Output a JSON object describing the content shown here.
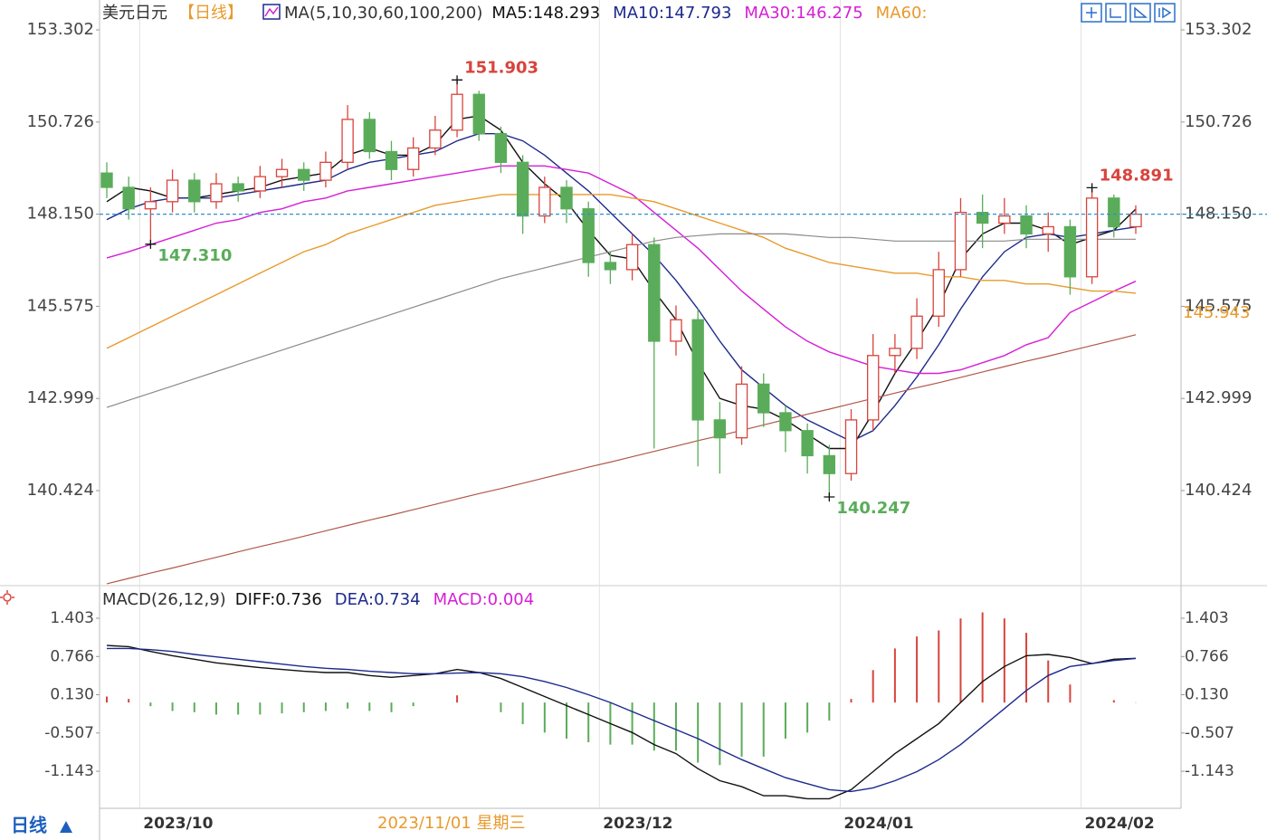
{
  "chart_data": [
    {
      "type": "candlestick",
      "title": "美元日元",
      "period": "【日线】",
      "indicator": "MA(5,10,30,60,100,200)",
      "categories": [
        null,
        null,
        "2023/10",
        null,
        null,
        null,
        null,
        null,
        null,
        null,
        null,
        null,
        null,
        null,
        null,
        null,
        null,
        null,
        null,
        null,
        null,
        null,
        null,
        "2023/12",
        null,
        null,
        null,
        null,
        null,
        null,
        null,
        null,
        null,
        null,
        "2024/01",
        null,
        null,
        null,
        null,
        null,
        null,
        null,
        null,
        null,
        null,
        "2024/02",
        null,
        null
      ],
      "open": [
        149.3,
        148.9,
        148.3,
        148.5,
        149.1,
        148.5,
        149.0,
        148.8,
        149.2,
        149.4,
        149.1,
        149.6,
        150.8,
        149.9,
        149.4,
        150.0,
        150.5,
        151.5,
        150.4,
        149.6,
        148.1,
        148.9,
        148.3,
        146.8,
        146.6,
        147.3,
        144.6,
        145.2,
        142.4,
        141.9,
        143.4,
        142.6,
        142.1,
        141.4,
        140.9,
        142.4,
        144.2,
        144.4,
        145.3,
        146.6,
        148.2,
        147.9,
        148.1,
        147.6,
        147.8,
        146.4,
        148.6,
        147.8
      ],
      "close": [
        148.9,
        148.3,
        148.5,
        149.1,
        148.5,
        149.0,
        148.8,
        149.2,
        149.4,
        149.1,
        149.6,
        150.8,
        149.9,
        149.4,
        150.0,
        150.5,
        151.5,
        150.4,
        149.6,
        148.1,
        148.9,
        148.3,
        146.8,
        146.6,
        147.3,
        144.6,
        145.2,
        142.4,
        141.9,
        143.4,
        142.6,
        142.1,
        141.4,
        140.9,
        142.4,
        144.2,
        144.4,
        145.3,
        146.6,
        148.2,
        147.9,
        148.1,
        147.6,
        147.8,
        146.4,
        148.6,
        147.8,
        148.15
      ],
      "high": [
        149.6,
        149.2,
        148.9,
        149.4,
        149.3,
        149.3,
        149.2,
        149.5,
        149.7,
        149.6,
        149.9,
        151.2,
        151.0,
        150.2,
        150.3,
        150.9,
        151.903,
        151.6,
        150.6,
        149.8,
        149.2,
        149.1,
        148.5,
        147.1,
        147.6,
        147.5,
        145.6,
        145.5,
        142.9,
        143.9,
        143.7,
        142.8,
        142.3,
        141.7,
        142.7,
        144.8,
        144.8,
        145.8,
        147.1,
        148.6,
        148.7,
        148.6,
        148.4,
        148.2,
        148.0,
        148.891,
        148.7,
        148.4
      ],
      "low": [
        148.6,
        148.0,
        147.31,
        148.2,
        148.2,
        148.3,
        148.5,
        148.6,
        148.9,
        148.8,
        148.9,
        149.4,
        149.7,
        149.1,
        149.2,
        149.8,
        150.3,
        150.2,
        149.3,
        147.6,
        147.9,
        147.9,
        146.4,
        146.2,
        146.3,
        141.6,
        144.2,
        141.1,
        140.9,
        141.7,
        142.2,
        141.5,
        140.9,
        140.247,
        140.7,
        142.1,
        143.7,
        144.1,
        145.0,
        146.4,
        147.2,
        147.6,
        147.2,
        147.1,
        145.9,
        146.2,
        147.5,
        147.6
      ],
      "up_color": "#d8443c",
      "down_color": "#5aac5a",
      "price_line_color": "#2e8fd0",
      "series": [
        {
          "name": "MA5:148.293",
          "color": "#111111",
          "values": [
            148.5,
            148.9,
            148.8,
            148.6,
            148.6,
            148.7,
            148.8,
            148.9,
            149.1,
            149.2,
            149.3,
            149.8,
            150.0,
            149.8,
            149.8,
            150.1,
            150.8,
            150.9,
            150.5,
            149.6,
            149.0,
            148.5,
            147.7,
            147.0,
            146.9,
            146.0,
            145.2,
            144.0,
            143.0,
            142.8,
            142.7,
            142.4,
            142.0,
            141.6,
            141.6,
            142.6,
            143.7,
            144.6,
            145.6,
            146.9,
            147.6,
            147.9,
            147.9,
            147.7,
            147.3,
            147.5,
            147.7,
            148.293
          ]
        },
        {
          "name": "MA10:147.793",
          "color": "#1d2a8c",
          "values": [
            148.0,
            148.3,
            148.5,
            148.6,
            148.6,
            148.6,
            148.7,
            148.8,
            148.9,
            149.0,
            149.1,
            149.4,
            149.6,
            149.7,
            149.8,
            149.9,
            150.2,
            150.4,
            150.4,
            150.2,
            149.8,
            149.3,
            148.8,
            148.2,
            147.6,
            147.0,
            146.3,
            145.5,
            144.6,
            143.8,
            143.3,
            142.8,
            142.4,
            142.1,
            141.8,
            142.1,
            142.8,
            143.6,
            144.5,
            145.5,
            146.4,
            147.1,
            147.5,
            147.6,
            147.5,
            147.6,
            147.7,
            147.793
          ]
        },
        {
          "name": "MA30:146.275",
          "color": "#d51fd5",
          "values": [
            146.93,
            147.1,
            147.3,
            147.5,
            147.7,
            147.9,
            148.0,
            148.2,
            148.3,
            148.5,
            148.6,
            148.8,
            148.9,
            149.0,
            149.1,
            149.2,
            149.3,
            149.4,
            149.5,
            149.5,
            149.5,
            149.4,
            149.3,
            149.0,
            148.7,
            148.2,
            147.7,
            147.2,
            146.6,
            146.0,
            145.5,
            145.0,
            144.6,
            144.3,
            144.1,
            143.9,
            143.8,
            143.7,
            143.7,
            143.8,
            144.0,
            144.2,
            144.5,
            144.7,
            145.4,
            145.7,
            146.0,
            146.275
          ]
        },
        {
          "name": "MA60:",
          "color": "#e89a2c",
          "values": [
            144.4,
            144.7,
            145.0,
            145.3,
            145.6,
            145.9,
            146.2,
            146.5,
            146.8,
            147.1,
            147.3,
            147.6,
            147.8,
            148.0,
            148.2,
            148.4,
            148.5,
            148.6,
            148.7,
            148.7,
            148.7,
            148.7,
            148.7,
            148.7,
            148.6,
            148.5,
            148.3,
            148.1,
            147.9,
            147.7,
            147.5,
            147.2,
            147.0,
            146.8,
            146.7,
            146.6,
            146.5,
            146.5,
            146.4,
            146.4,
            146.3,
            146.3,
            146.2,
            146.2,
            146.1,
            146.0,
            146.0,
            145.943
          ]
        },
        {
          "color": "#8a8a8a",
          "values": [
            142.75,
            142.95,
            143.15,
            143.35,
            143.55,
            143.75,
            143.95,
            144.15,
            144.35,
            144.55,
            144.75,
            144.95,
            145.15,
            145.35,
            145.55,
            145.75,
            145.95,
            146.15,
            146.35,
            146.5,
            146.65,
            146.8,
            146.95,
            147.1,
            147.25,
            147.4,
            147.5,
            147.55,
            147.6,
            147.6,
            147.6,
            147.6,
            147.55,
            147.5,
            147.5,
            147.45,
            147.4,
            147.4,
            147.4,
            147.4,
            147.4,
            147.4,
            147.45,
            147.45,
            147.45,
            147.45,
            147.45,
            147.45
          ]
        },
        {
          "color": "#b0584a",
          "values": [
            137.82,
            137.97,
            138.12,
            138.26,
            138.41,
            138.56,
            138.71,
            138.86,
            139.0,
            139.15,
            139.3,
            139.45,
            139.6,
            139.74,
            139.89,
            140.04,
            140.19,
            140.34,
            140.48,
            140.63,
            140.78,
            140.93,
            141.08,
            141.22,
            141.37,
            141.52,
            141.67,
            141.82,
            141.96,
            142.11,
            142.26,
            142.41,
            142.56,
            142.7,
            142.85,
            143.0,
            143.15,
            143.3,
            143.44,
            143.59,
            143.74,
            143.89,
            144.04,
            144.18,
            144.33,
            144.48,
            144.63,
            144.78
          ]
        }
      ],
      "annotations": [
        {
          "x": 16,
          "value": 151.903,
          "label": "151.903",
          "color": "#d8443c"
        },
        {
          "x": 2,
          "value": 147.31,
          "label": "147.310",
          "color": "#5aac5a"
        },
        {
          "x": 45,
          "value": 148.891,
          "label": "148.891",
          "color": "#d8443c"
        },
        {
          "x": 33,
          "value": 140.247,
          "label": "140.247",
          "color": "#5aac5a"
        }
      ],
      "ylim": [
        137.818,
        154.137
      ],
      "yticks": [
        153.302,
        150.726,
        {
          "value": 148.15,
          "label": "148.150"
        },
        145.575,
        142.999,
        140.424
      ]
    },
    {
      "type": "macd",
      "title": "MACD(26,12,9)",
      "x_label_highlight": "2023/11/01 星期三",
      "period_label": "日线",
      "series": [
        {
          "name": "DIFF:0.736",
          "color": "#111111",
          "values": [
            0.95,
            0.93,
            0.85,
            0.78,
            0.72,
            0.66,
            0.62,
            0.58,
            0.55,
            0.52,
            0.5,
            0.5,
            0.45,
            0.42,
            0.45,
            0.48,
            0.55,
            0.5,
            0.4,
            0.25,
            0.1,
            -0.05,
            -0.2,
            -0.35,
            -0.5,
            -0.7,
            -0.85,
            -1.1,
            -1.3,
            -1.4,
            -1.55,
            -1.55,
            -1.6,
            -1.6,
            -1.45,
            -1.15,
            -0.85,
            -0.6,
            -0.35,
            0.0,
            0.35,
            0.6,
            0.78,
            0.8,
            0.75,
            0.65,
            0.72,
            0.736
          ]
        },
        {
          "name": "DEA:0.734",
          "color": "#1d2a8c",
          "values": [
            0.9,
            0.9,
            0.88,
            0.85,
            0.8,
            0.76,
            0.72,
            0.68,
            0.64,
            0.6,
            0.57,
            0.55,
            0.52,
            0.5,
            0.48,
            0.48,
            0.49,
            0.5,
            0.48,
            0.43,
            0.35,
            0.25,
            0.13,
            0.0,
            -0.15,
            -0.3,
            -0.45,
            -0.6,
            -0.78,
            -0.95,
            -1.1,
            -1.25,
            -1.35,
            -1.45,
            -1.48,
            -1.42,
            -1.3,
            -1.15,
            -0.95,
            -0.7,
            -0.4,
            -0.1,
            0.2,
            0.45,
            0.6,
            0.65,
            0.7,
            0.734
          ]
        },
        {
          "name": "MACD:0.004",
          "color": "#d51fd5",
          "up_color": "#d8443c",
          "down_color": "#5aac5a",
          "values": [
            0.1,
            0.06,
            -0.06,
            -0.14,
            -0.16,
            -0.2,
            -0.2,
            -0.2,
            -0.18,
            -0.16,
            -0.14,
            -0.1,
            -0.14,
            -0.16,
            -0.06,
            0.0,
            0.12,
            0.0,
            -0.16,
            -0.36,
            -0.5,
            -0.6,
            -0.66,
            -0.7,
            -0.7,
            -0.8,
            -0.8,
            -1.0,
            -1.04,
            -0.9,
            -0.9,
            -0.6,
            -0.5,
            -0.3,
            0.06,
            0.54,
            0.9,
            1.1,
            1.2,
            1.4,
            1.5,
            1.4,
            1.16,
            0.7,
            0.3,
            0.0,
            0.04,
            0.004
          ]
        }
      ],
      "ylim": [
        -1.76,
        1.9
      ],
      "yticks": [
        1.403,
        0.766,
        {
          "value": 0.13,
          "label": "0.130"
        },
        -0.507,
        -1.143
      ]
    }
  ]
}
